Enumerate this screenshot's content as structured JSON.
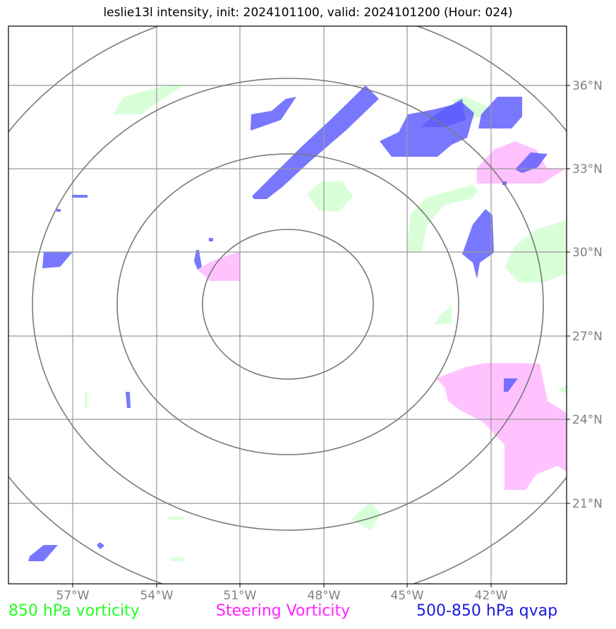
{
  "title": "leslie13l intensity, init: 2024101100, valid: 2024101200 (Hour: 024)",
  "map": {
    "lon_labels": [
      "57°W",
      "54°W",
      "51°W",
      "48°W",
      "45°W",
      "42°W"
    ],
    "lat_labels": [
      "36°N",
      "33°N",
      "30°N",
      "27°N",
      "24°N",
      "21°N"
    ],
    "grid_color": "#999999",
    "ring_color": "#7a7a7a",
    "range_ring_count": 4,
    "fields": {
      "vorticity_850": {
        "color": "#ccffcc",
        "label": "850 hPa vorticity"
      },
      "steering_vorticity": {
        "color": "#ffbbff",
        "label": "Steering Vorticity"
      },
      "qvap_500_850": {
        "color": "#6b6bff",
        "label": "500-850 hPa qvap"
      }
    }
  },
  "legend": {
    "vorticity_850": "850 hPa vorticity",
    "steering_vorticity": "Steering Vorticity",
    "qvap": "500-850 hPa qvap"
  }
}
